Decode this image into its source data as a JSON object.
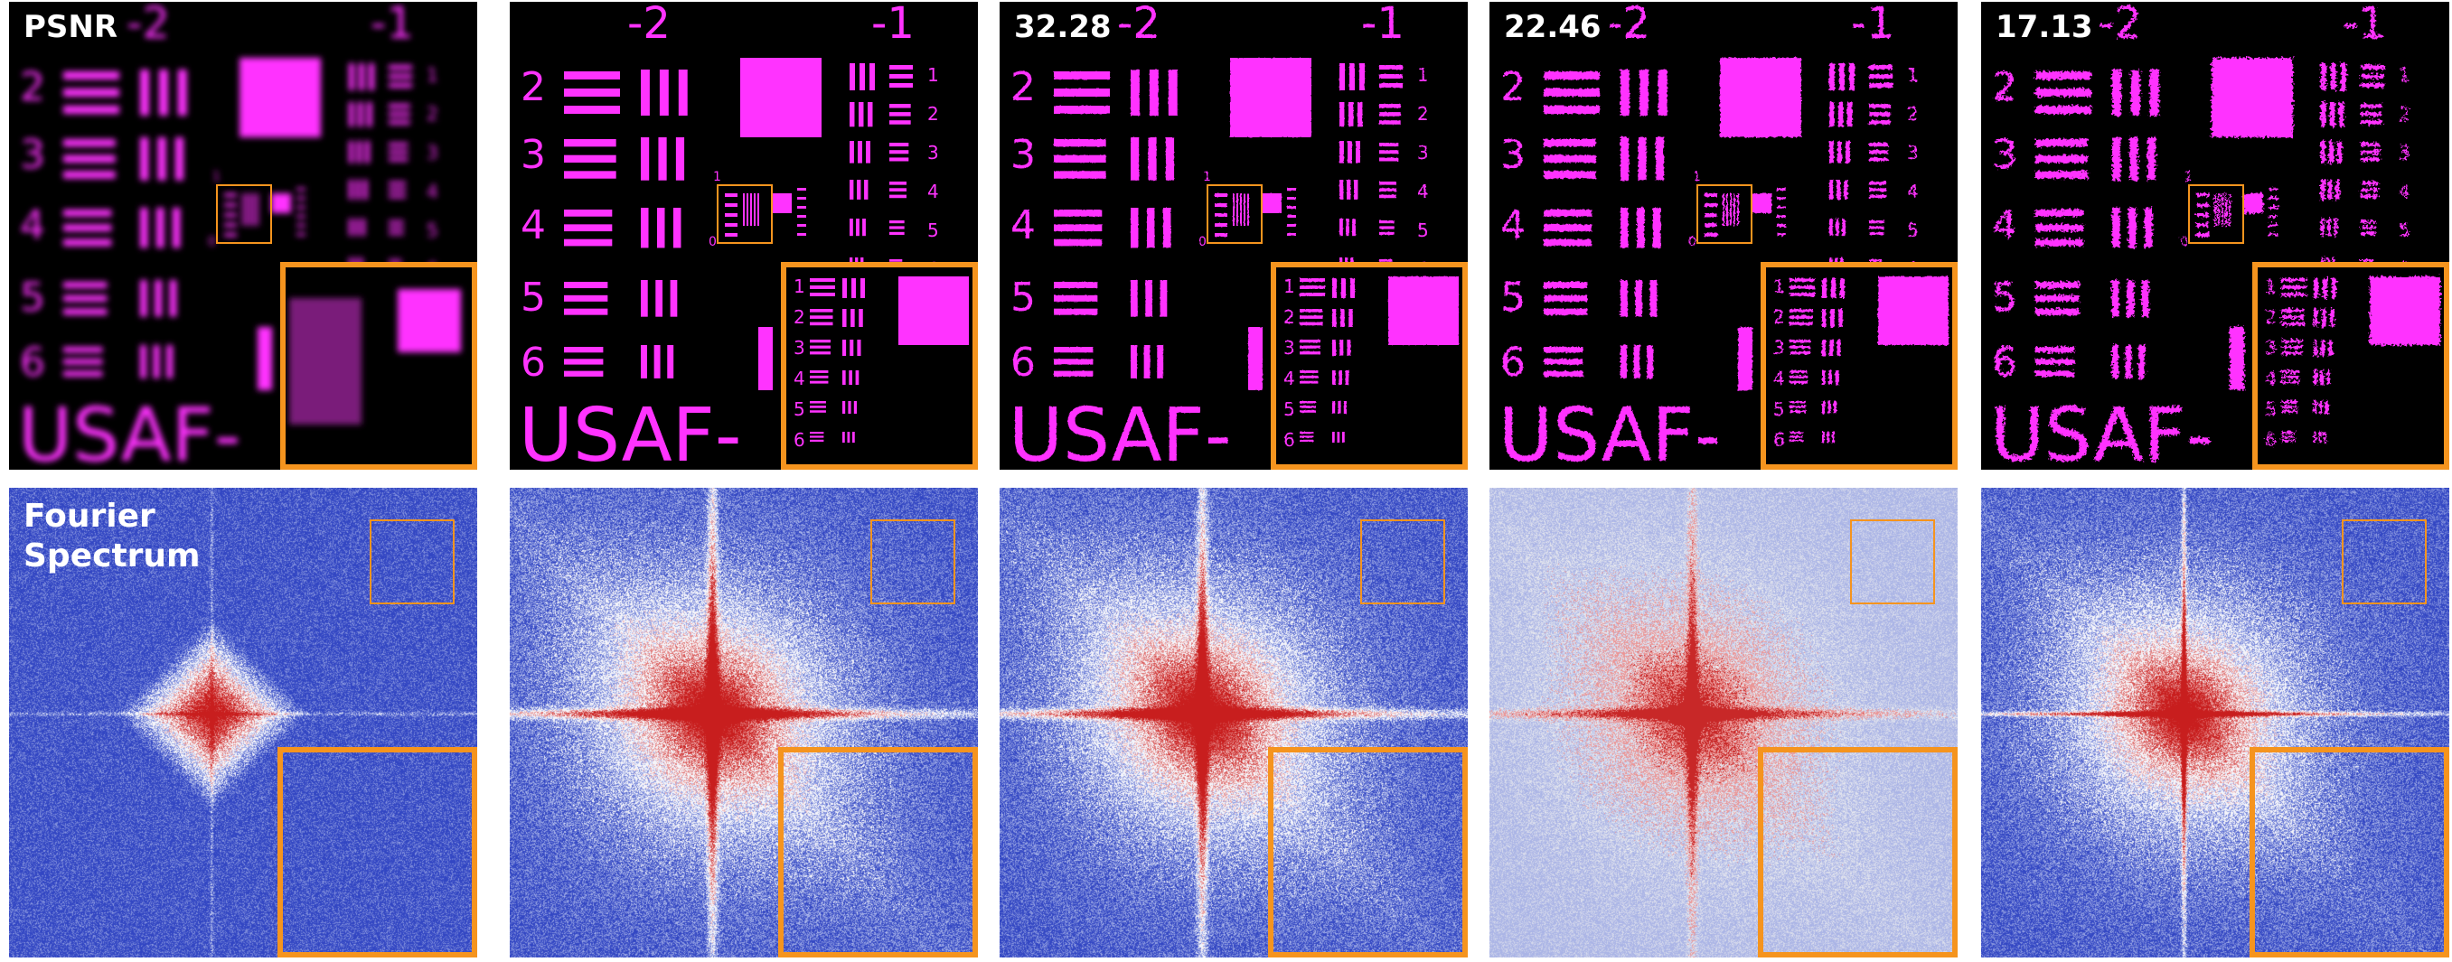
{
  "figure": {
    "columns": [
      {
        "id": "col1",
        "usaf_label": "PSNR",
        "style": "blurred"
      },
      {
        "id": "col2",
        "usaf_label": "",
        "style": "ground-truth"
      },
      {
        "id": "col3",
        "usaf_label": "32.28",
        "style": "slight-noise"
      },
      {
        "id": "col4",
        "usaf_label": "22.46",
        "style": "noisy"
      },
      {
        "id": "col5",
        "usaf_label": "17.13",
        "style": "degraded"
      }
    ],
    "spectrum_row_label": "Fourier\nSpectrum",
    "usaf_text": {
      "group_minus2": "-2",
      "group_minus1": "-1",
      "big_numbers": [
        "2",
        "3",
        "4",
        "5",
        "6"
      ],
      "small_numbers": [
        "1",
        "2",
        "3",
        "4",
        "5",
        "6"
      ],
      "inset_numbers": [
        "1",
        "2",
        "3",
        "4",
        "5",
        "6"
      ],
      "banner": "USAF-",
      "center_small_top": "1",
      "center_small_zero": "0"
    },
    "colors": {
      "target_magenta": "#ff33ff",
      "background": "#000000",
      "highlight_box": "#f5941e",
      "spectrum_blue": "#3848c6",
      "spectrum_red": "#c81e1e",
      "label_text": "#ffffff"
    }
  }
}
